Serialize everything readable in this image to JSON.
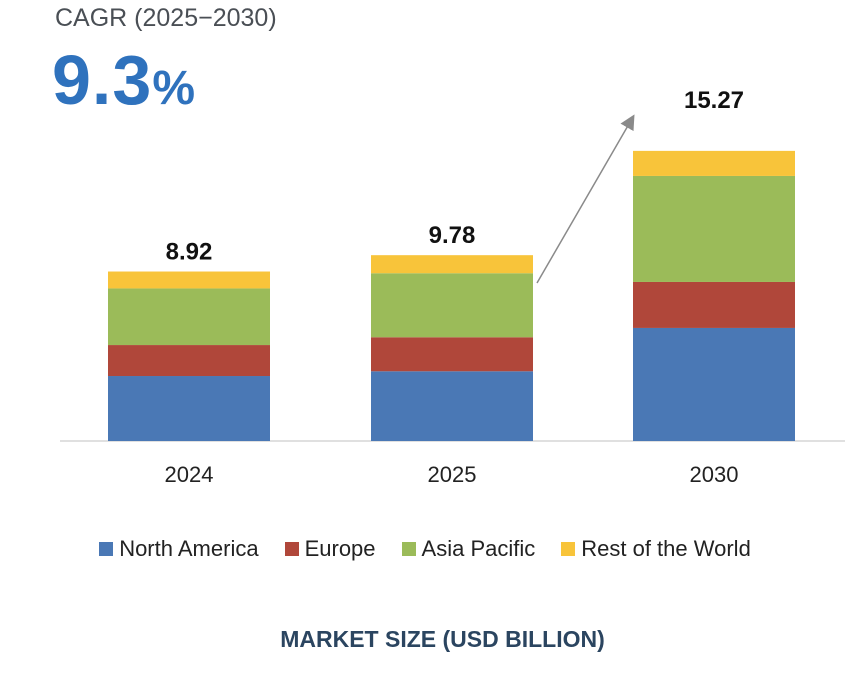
{
  "header": {
    "cagr_label": "CAGR (2025−2030)",
    "cagr_value": "9.3",
    "cagr_unit": "%"
  },
  "chart_data": {
    "type": "bar",
    "stacked": true,
    "categories": [
      "2024",
      "2025",
      "2030"
    ],
    "totals": [
      "8.92",
      "9.78",
      "15.27"
    ],
    "series": [
      {
        "name": "North America",
        "color": "#4a78b5",
        "values": [
          3.42,
          3.67,
          5.95
        ]
      },
      {
        "name": "Europe",
        "color": "#b0473a",
        "values": [
          1.63,
          1.79,
          2.42
        ]
      },
      {
        "name": "Asia Pacific",
        "color": "#9bbb59",
        "values": [
          2.98,
          3.37,
          5.58
        ]
      },
      {
        "name": "Rest of the World",
        "color": "#f8c43a",
        "values": [
          0.89,
          0.95,
          1.32
        ]
      }
    ],
    "xlabel": "MARKET SIZE (USD BILLION)",
    "ylim": [
      0,
      16
    ],
    "grid": false,
    "legend": "bottom",
    "annotation": "growth arrow from 2025 to 2030"
  }
}
